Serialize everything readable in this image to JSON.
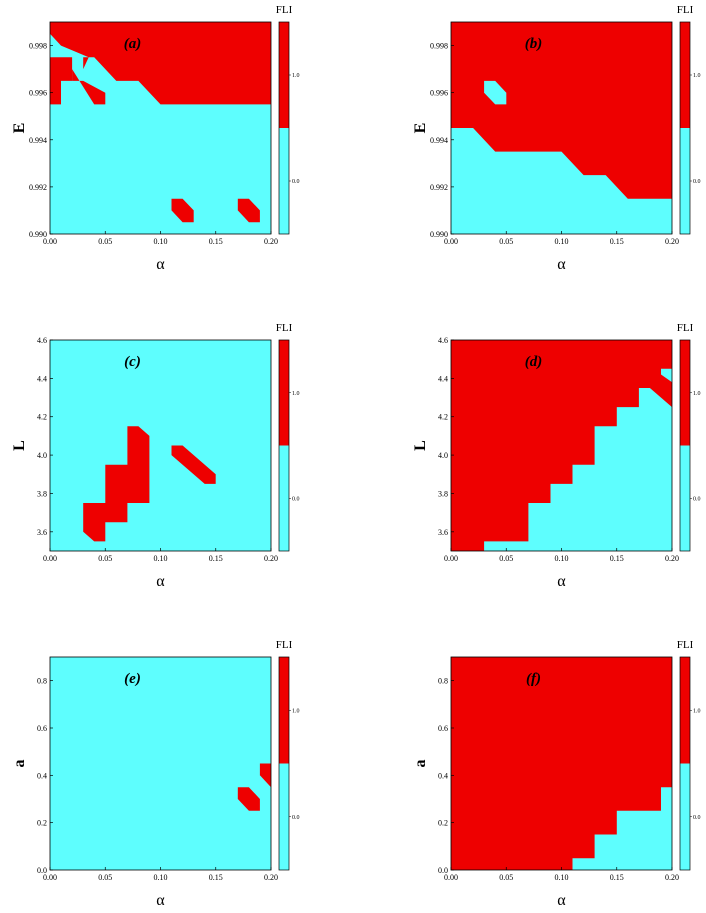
{
  "chart_data": [
    {
      "type": "heatmap",
      "panel_label": "(a)",
      "xlabel": "α",
      "ylabel": "E",
      "xlim": [
        0,
        0.2
      ],
      "ylim": [
        0.99,
        0.999
      ],
      "xticks": [
        "0.00",
        "0.05",
        "0.10",
        "0.15",
        "0.20"
      ],
      "yticks": [
        "0.990",
        "0.992",
        "0.994",
        "0.996",
        "0.998"
      ],
      "colorbar": {
        "title": "FLI",
        "ticks": [
          "0.0",
          "1.0"
        ]
      },
      "colors": {
        "regular": "#5efefe",
        "chaotic": "#ee0000"
      },
      "background": "regular",
      "chaotic_regions": [
        [
          [
            0.01,
            0.999
          ],
          [
            0.2,
            0.999
          ],
          [
            0.2,
            0.9955
          ],
          [
            0.1,
            0.9955
          ],
          [
            0.08,
            0.9965
          ],
          [
            0.06,
            0.9965
          ],
          [
            0.04,
            0.9975
          ],
          [
            0.03,
            0.9975
          ],
          [
            0.03,
            0.997
          ],
          [
            0.035,
            0.9975
          ],
          [
            0.01,
            0.998
          ]
        ],
        [
          [
            0.0,
            0.999
          ],
          [
            0.01,
            0.999
          ],
          [
            0.01,
            0.998
          ],
          [
            0.0,
            0.9985
          ]
        ],
        [
          [
            0.0,
            0.9975
          ],
          [
            0.02,
            0.9975
          ],
          [
            0.02,
            0.9965
          ],
          [
            0.01,
            0.9965
          ],
          [
            0.01,
            0.9955
          ],
          [
            0.0,
            0.9955
          ]
        ],
        [
          [
            0.02,
            0.9965
          ],
          [
            0.03,
            0.9965
          ],
          [
            0.05,
            0.996
          ],
          [
            0.05,
            0.9955
          ],
          [
            0.04,
            0.9955
          ],
          [
            0.02,
            0.997
          ]
        ],
        [
          [
            0.11,
            0.9915
          ],
          [
            0.12,
            0.9915
          ],
          [
            0.13,
            0.991
          ],
          [
            0.13,
            0.9905
          ],
          [
            0.12,
            0.9905
          ],
          [
            0.11,
            0.991
          ]
        ],
        [
          [
            0.17,
            0.9915
          ],
          [
            0.18,
            0.9915
          ],
          [
            0.19,
            0.991
          ],
          [
            0.19,
            0.9905
          ],
          [
            0.18,
            0.9905
          ],
          [
            0.17,
            0.991
          ]
        ]
      ]
    },
    {
      "type": "heatmap",
      "panel_label": "(b)",
      "xlabel": "α",
      "ylabel": "E",
      "xlim": [
        0,
        0.2
      ],
      "ylim": [
        0.99,
        0.999
      ],
      "xticks": [
        "0.00",
        "0.05",
        "0.10",
        "0.15",
        "0.20"
      ],
      "yticks": [
        "0.990",
        "0.992",
        "0.994",
        "0.996",
        "0.998"
      ],
      "colorbar": {
        "title": "FLI",
        "ticks": [
          "0.0",
          "1.0"
        ]
      },
      "colors": {
        "regular": "#5efefe",
        "chaotic": "#ee0000"
      },
      "background": "chaotic",
      "regular_regions": [
        [
          [
            0.0,
            0.99
          ],
          [
            0.2,
            0.99
          ],
          [
            0.2,
            0.9915
          ],
          [
            0.16,
            0.9915
          ],
          [
            0.14,
            0.9925
          ],
          [
            0.12,
            0.9925
          ],
          [
            0.1,
            0.9935
          ],
          [
            0.04,
            0.9935
          ],
          [
            0.02,
            0.9945
          ],
          [
            0.0,
            0.9945
          ]
        ],
        [
          [
            0.03,
            0.9965
          ],
          [
            0.04,
            0.9965
          ],
          [
            0.05,
            0.996
          ],
          [
            0.05,
            0.9955
          ],
          [
            0.04,
            0.9955
          ],
          [
            0.03,
            0.996
          ]
        ]
      ]
    },
    {
      "type": "heatmap",
      "panel_label": "(c)",
      "xlabel": "α",
      "ylabel": "L",
      "xlim": [
        0,
        0.2
      ],
      "ylim": [
        3.5,
        4.6
      ],
      "xticks": [
        "0.00",
        "0.05",
        "0.10",
        "0.15",
        "0.20"
      ],
      "yticks": [
        "3.6",
        "3.8",
        "4.0",
        "4.2",
        "4.4",
        "4.6"
      ],
      "colorbar": {
        "title": "FLI",
        "ticks": [
          "0.0",
          "1.0"
        ]
      },
      "colors": {
        "regular": "#5efefe",
        "chaotic": "#ee0000"
      },
      "background": "regular",
      "chaotic_regions": [
        [
          [
            0.03,
            3.75
          ],
          [
            0.05,
            3.75
          ],
          [
            0.05,
            3.95
          ],
          [
            0.07,
            3.95
          ],
          [
            0.07,
            4.15
          ],
          [
            0.08,
            4.15
          ],
          [
            0.09,
            4.1
          ],
          [
            0.09,
            3.75
          ],
          [
            0.07,
            3.75
          ],
          [
            0.07,
            3.65
          ],
          [
            0.05,
            3.65
          ],
          [
            0.05,
            3.55
          ],
          [
            0.04,
            3.55
          ],
          [
            0.03,
            3.6
          ]
        ],
        [
          [
            0.11,
            4.05
          ],
          [
            0.12,
            4.05
          ],
          [
            0.15,
            3.9
          ],
          [
            0.15,
            3.85
          ],
          [
            0.14,
            3.85
          ],
          [
            0.11,
            4.0
          ]
        ]
      ]
    },
    {
      "type": "heatmap",
      "panel_label": "(d)",
      "xlabel": "α",
      "ylabel": "L",
      "xlim": [
        0,
        0.2
      ],
      "ylim": [
        3.5,
        4.6
      ],
      "xticks": [
        "0.00",
        "0.05",
        "0.10",
        "0.15",
        "0.20"
      ],
      "yticks": [
        "3.6",
        "3.8",
        "4.0",
        "4.2",
        "4.4",
        "4.6"
      ],
      "colorbar": {
        "title": "FLI",
        "ticks": [
          "0.0",
          "1.0"
        ]
      },
      "colors": {
        "regular": "#5efefe",
        "chaotic": "#ee0000"
      },
      "background": "chaotic",
      "regular_regions": [
        [
          [
            0.03,
            3.5
          ],
          [
            0.2,
            3.5
          ],
          [
            0.2,
            4.25
          ],
          [
            0.18,
            4.35
          ],
          [
            0.17,
            4.35
          ],
          [
            0.17,
            4.25
          ],
          [
            0.15,
            4.25
          ],
          [
            0.15,
            4.15
          ],
          [
            0.13,
            4.15
          ],
          [
            0.13,
            3.95
          ],
          [
            0.11,
            3.95
          ],
          [
            0.11,
            3.85
          ],
          [
            0.09,
            3.85
          ],
          [
            0.09,
            3.75
          ],
          [
            0.07,
            3.75
          ],
          [
            0.07,
            3.55
          ],
          [
            0.03,
            3.55
          ]
        ],
        [
          [
            0.19,
            4.45
          ],
          [
            0.2,
            4.45
          ],
          [
            0.2,
            4.38
          ],
          [
            0.19,
            4.42
          ]
        ]
      ]
    },
    {
      "type": "heatmap",
      "panel_label": "(e)",
      "xlabel": "α",
      "ylabel": "a",
      "xlim": [
        0,
        0.2
      ],
      "ylim": [
        0,
        0.9
      ],
      "xticks": [
        "0.00",
        "0.05",
        "0.10",
        "0.15",
        "0.20"
      ],
      "yticks": [
        "0.0",
        "0.2",
        "0.4",
        "0.6",
        "0.8"
      ],
      "colorbar": {
        "title": "FLI",
        "ticks": [
          "0.0",
          "1.0"
        ]
      },
      "colors": {
        "regular": "#5efefe",
        "chaotic": "#ee0000"
      },
      "background": "regular",
      "chaotic_regions": [
        [
          [
            0.17,
            0.35
          ],
          [
            0.18,
            0.35
          ],
          [
            0.19,
            0.3
          ],
          [
            0.19,
            0.25
          ],
          [
            0.18,
            0.25
          ],
          [
            0.17,
            0.3
          ]
        ],
        [
          [
            0.19,
            0.45
          ],
          [
            0.2,
            0.45
          ],
          [
            0.2,
            0.35
          ],
          [
            0.19,
            0.4
          ]
        ]
      ]
    },
    {
      "type": "heatmap",
      "panel_label": "(f)",
      "xlabel": "α",
      "ylabel": "a",
      "xlim": [
        0,
        0.2
      ],
      "ylim": [
        0,
        0.9
      ],
      "xticks": [
        "0.00",
        "0.05",
        "0.10",
        "0.15",
        "0.20"
      ],
      "yticks": [
        "0.0",
        "0.2",
        "0.4",
        "0.6",
        "0.8"
      ],
      "colorbar": {
        "title": "FLI",
        "ticks": [
          "0.0",
          "1.0"
        ]
      },
      "colors": {
        "regular": "#5efefe",
        "chaotic": "#ee0000"
      },
      "background": "chaotic",
      "regular_regions": [
        [
          [
            0.11,
            0.0
          ],
          [
            0.2,
            0.0
          ],
          [
            0.2,
            0.35
          ],
          [
            0.19,
            0.35
          ],
          [
            0.19,
            0.25
          ],
          [
            0.15,
            0.25
          ],
          [
            0.15,
            0.15
          ],
          [
            0.13,
            0.15
          ],
          [
            0.13,
            0.05
          ],
          [
            0.11,
            0.05
          ]
        ]
      ]
    }
  ]
}
